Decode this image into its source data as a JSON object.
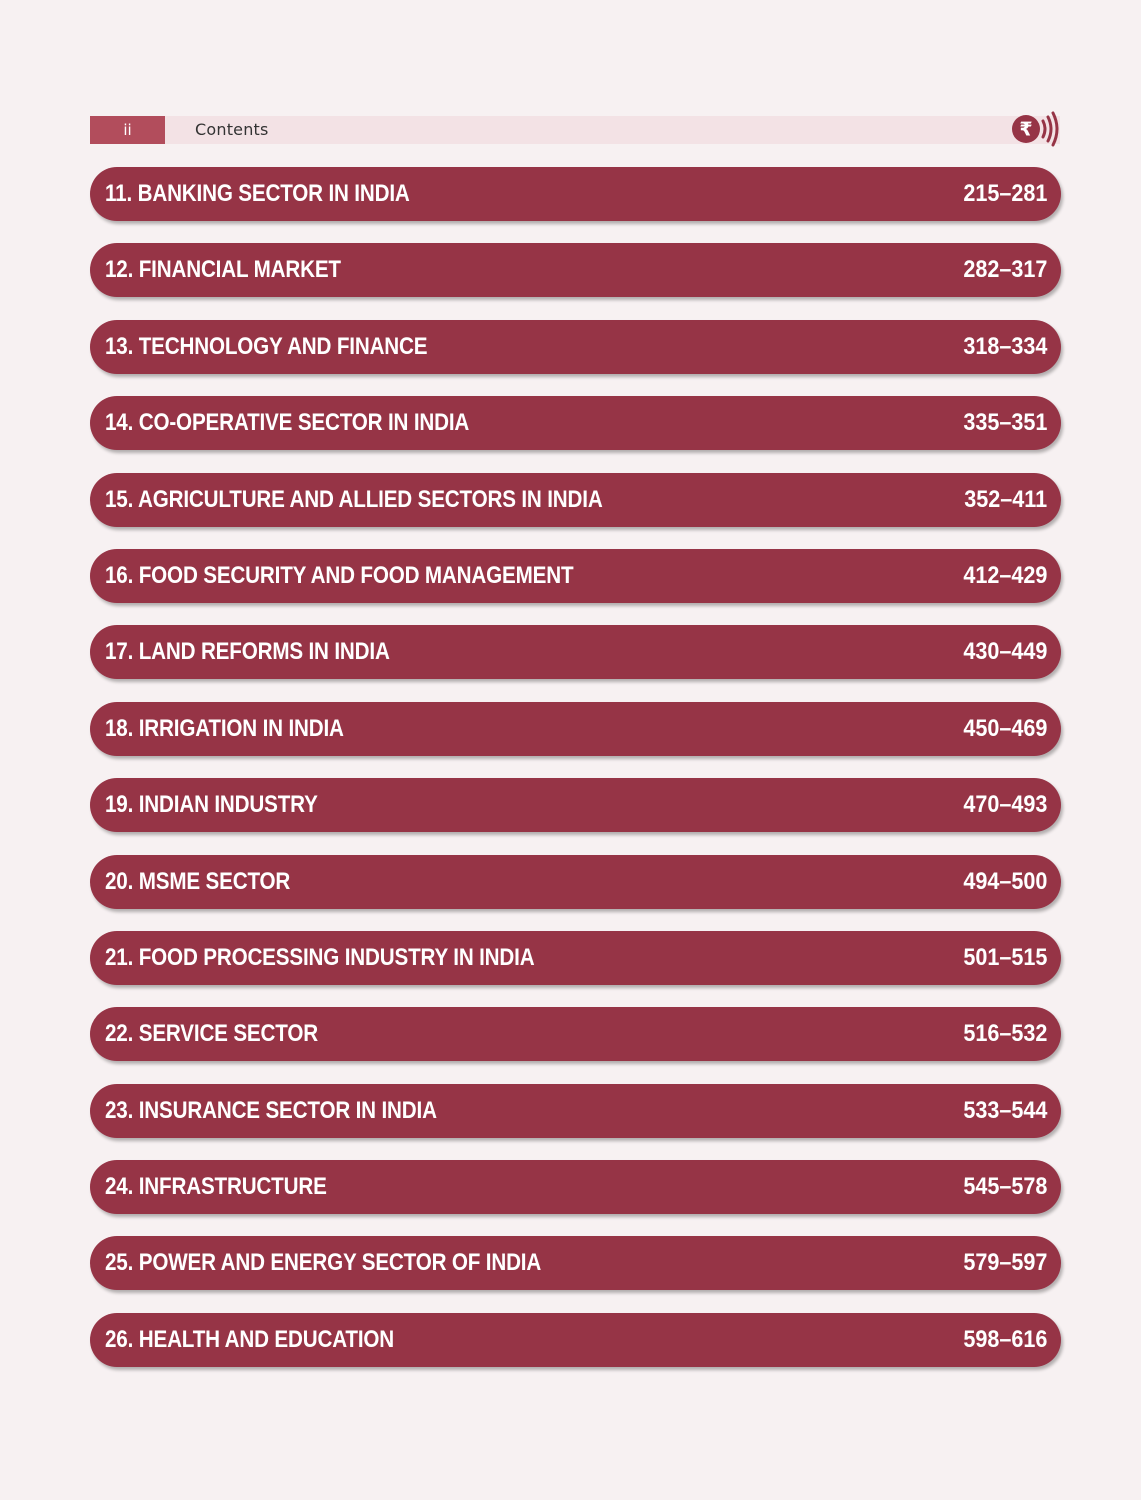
{
  "header": {
    "page_number": "ii",
    "title": "Contents",
    "logo_icon": "rupee-sound-logo-icon",
    "logo_symbol": "₹"
  },
  "colors": {
    "chapter_bar": "#963446",
    "header_strip": "#f3e2e5",
    "page_number_box": "#b24d5c",
    "background": "#f7f1f2"
  },
  "chapters": [
    {
      "title": "11. BANKING SECTOR IN INDIA",
      "pages": "215–281"
    },
    {
      "title": "12. FINANCIAL MARKET",
      "pages": "282–317"
    },
    {
      "title": "13. TECHNOLOGY AND FINANCE",
      "pages": "318–334"
    },
    {
      "title": "14. CO-OPERATIVE SECTOR IN INDIA",
      "pages": "335–351"
    },
    {
      "title": "15. AGRICULTURE AND ALLIED SECTORS IN INDIA",
      "pages": "352–411"
    },
    {
      "title": "16. FOOD SECURITY AND FOOD MANAGEMENT",
      "pages": "412–429"
    },
    {
      "title": "17. LAND REFORMS IN INDIA",
      "pages": "430–449"
    },
    {
      "title": "18. IRRIGATION IN INDIA",
      "pages": "450–469"
    },
    {
      "title": "19. INDIAN INDUSTRY",
      "pages": "470–493"
    },
    {
      "title": "20.  MSME SECTOR",
      "pages": "494–500"
    },
    {
      "title": "21. FOOD PROCESSING INDUSTRY IN INDIA",
      "pages": "501–515"
    },
    {
      "title": "22.  SERVICE SECTOR",
      "pages": "516–532"
    },
    {
      "title": "23.  INSURANCE SECTOR IN INDIA",
      "pages": "533–544"
    },
    {
      "title": "24.  INFRASTRUCTURE",
      "pages": "545–578"
    },
    {
      "title": "25.  POWER AND ENERGY SECTOR OF INDIA",
      "pages": "579–597"
    },
    {
      "title": "26.  HEALTH AND EDUCATION",
      "pages": "598–616"
    }
  ]
}
